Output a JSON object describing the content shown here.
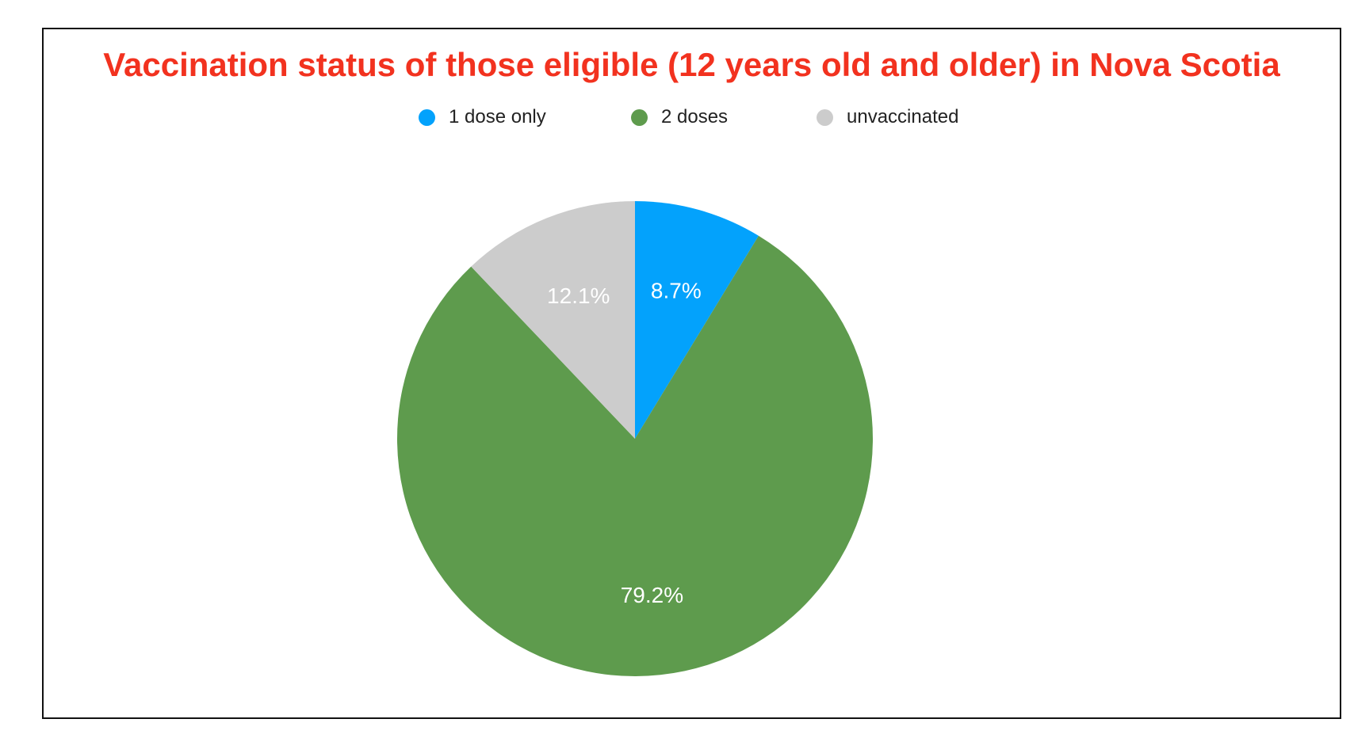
{
  "chart_data": {
    "type": "pie",
    "title": "Vaccination status of those eligible (12 years old and older) in Nova Scotia",
    "legend_position": "top",
    "slices": [
      {
        "name": "1 dose only",
        "value": 8.7,
        "label": "8.7%",
        "color": "#03a2fc"
      },
      {
        "name": "2 doses",
        "value": 79.2,
        "label": "79.2%",
        "color": "#5e9b4d"
      },
      {
        "name": "unvaccinated",
        "value": 12.1,
        "label": "12.1%",
        "color": "#cccccc"
      }
    ]
  },
  "colors": {
    "title": "#f2321f",
    "slice_label": "#ffffff",
    "border": "#111111"
  }
}
